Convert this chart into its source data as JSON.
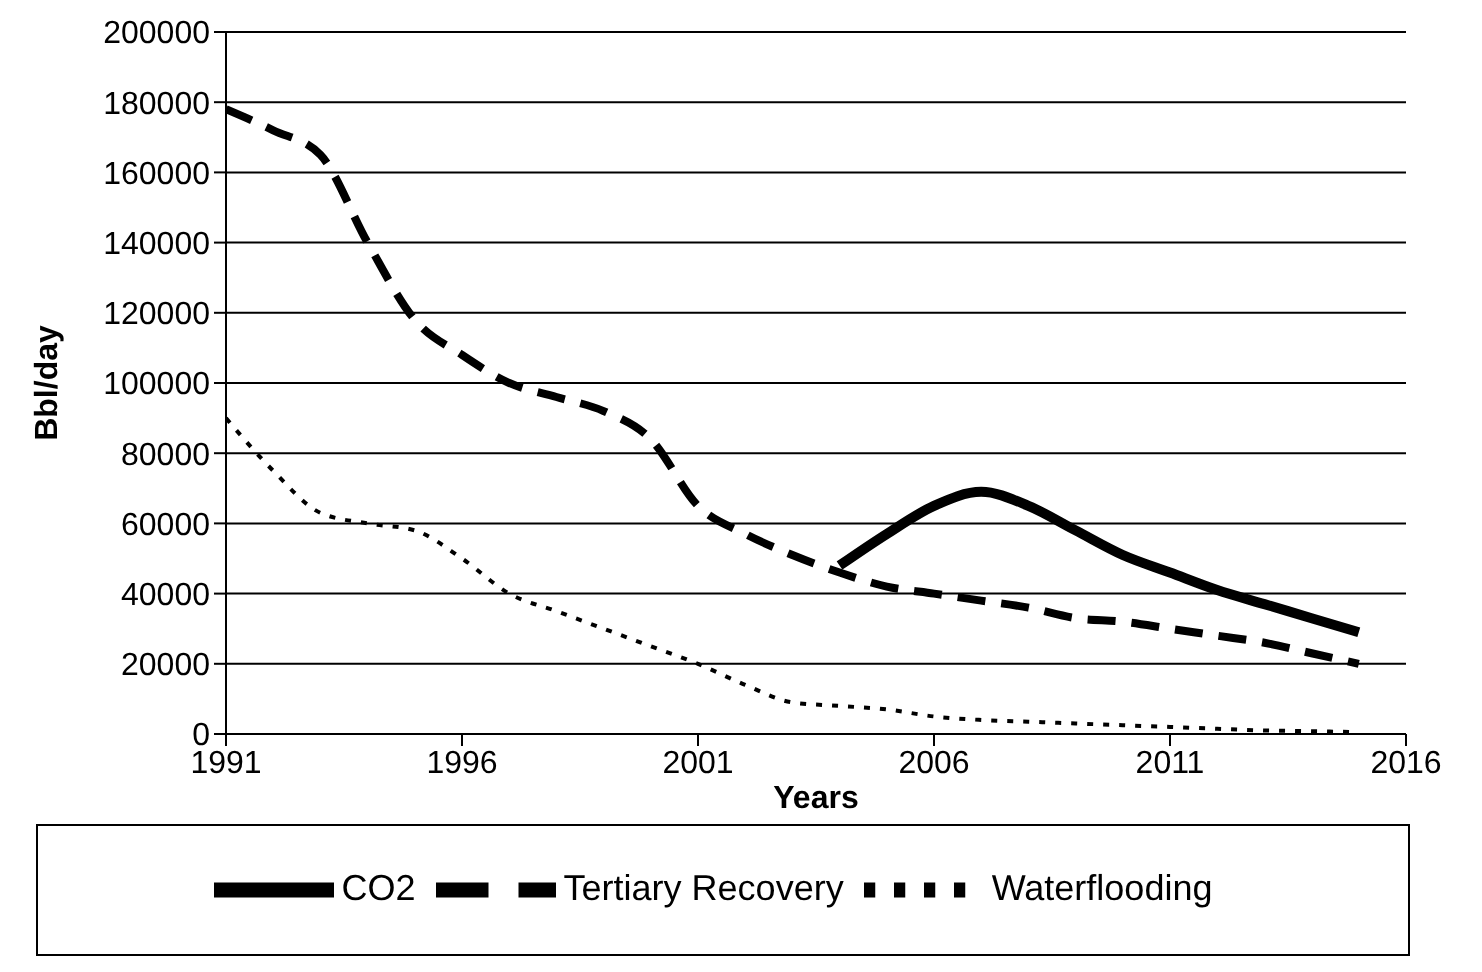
{
  "chart_data": {
    "type": "line",
    "xlabel": "Years",
    "ylabel": "Bbl/day",
    "x": [
      1991,
      1992,
      1993,
      1994,
      1995,
      1996,
      1997,
      1998,
      1999,
      2000,
      2001,
      2002,
      2003,
      2004,
      2005,
      2006,
      2007,
      2008,
      2009,
      2010,
      2011,
      2012,
      2013,
      2014,
      2015
    ],
    "xlim": [
      1991,
      2016
    ],
    "xticks": [
      1991,
      1996,
      2001,
      2006,
      2011,
      2016
    ],
    "ylim": [
      0,
      200000
    ],
    "yticks": [
      0,
      20000,
      40000,
      60000,
      80000,
      100000,
      120000,
      140000,
      160000,
      180000,
      200000
    ],
    "grid": "y",
    "legend": "bottom",
    "marker": "none",
    "series": [
      {
        "name": "Waterflooding",
        "color": "#000000",
        "line_style": "dotted",
        "values": [
          90000,
          75000,
          63000,
          60000,
          58000,
          50000,
          40000,
          35000,
          30000,
          25000,
          20000,
          14000,
          9000,
          8000,
          7000,
          5000,
          4000,
          3500,
          3000,
          2500,
          2000,
          1500,
          1000,
          800,
          500
        ]
      },
      {
        "name": "Tertiary Recovery",
        "color": "#000000",
        "line_style": "dashed",
        "values": [
          178000,
          172000,
          165000,
          140000,
          118000,
          108000,
          100000,
          96000,
          92000,
          84000,
          65000,
          57000,
          51000,
          46000,
          42000,
          40000,
          38000,
          36000,
          33000,
          32000,
          30000,
          28000,
          26000,
          23000,
          20000
        ]
      },
      {
        "name": "CO2",
        "color": "#000000",
        "line_style": "solid",
        "values": [
          null,
          null,
          null,
          null,
          null,
          null,
          null,
          null,
          null,
          null,
          null,
          null,
          null,
          48000,
          57000,
          65000,
          69000,
          65000,
          58000,
          51000,
          46000,
          41000,
          37000,
          33000,
          29000
        ]
      }
    ]
  }
}
